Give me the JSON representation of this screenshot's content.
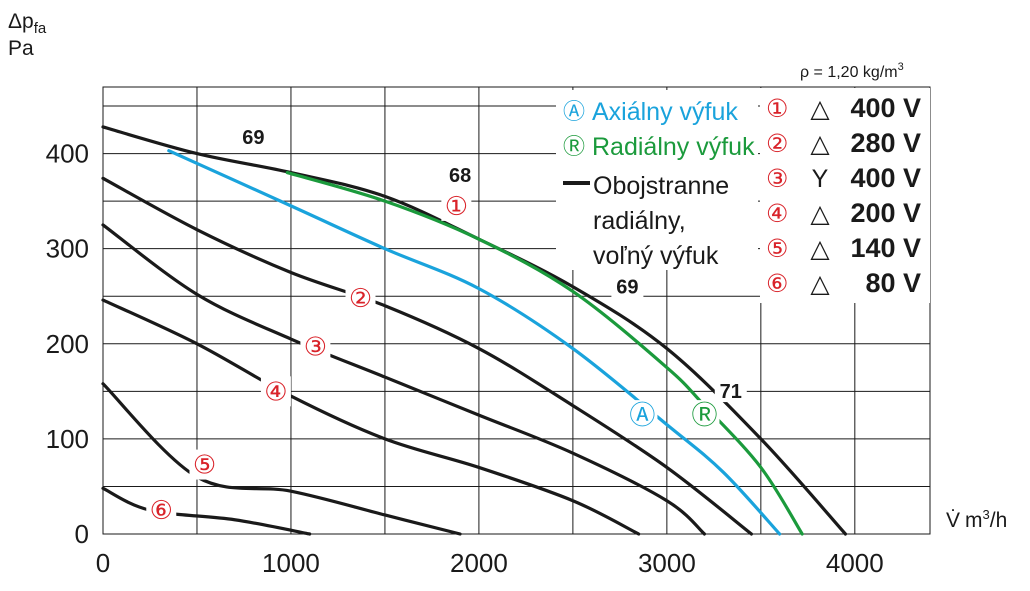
{
  "chart_data": {
    "type": "line",
    "ylabel_main": "Δp",
    "ylabel_sub": "fa",
    "yunit": "Pa",
    "xlabel_sym": "V̇",
    "xunit_main": "m",
    "xunit_sup": "3",
    "xunit_rest": "/h",
    "density_pre": "ρ = 1,20 kg/m",
    "density_sup": "3",
    "xlim": [
      0,
      4400
    ],
    "ylim": [
      0,
      470
    ],
    "xticks": [
      "0",
      "1000",
      "2000",
      "3000",
      "4000"
    ],
    "yticks": [
      "0",
      "100",
      "200",
      "300",
      "400"
    ],
    "grid": true,
    "colors": {
      "black": "#1a1a1a",
      "axial": "#1aa3dc",
      "radial": "#1b9a3c",
      "marker": "#d9232a"
    },
    "legend": [
      {
        "symbol": "Ⓐ",
        "label": "Axiálny výfuk",
        "color": "#1aa3dc"
      },
      {
        "symbol": "Ⓡ",
        "label": "Radiálny výfuk",
        "color": "#1b9a3c"
      },
      {
        "symbol": "line",
        "label": "Obojstranne",
        "label2": "radiálny,",
        "label3": "voľný výfuk",
        "color": "#1a1a1a"
      }
    ],
    "speed_legend": [
      {
        "symbol": "①",
        "conn": "△",
        "voltage": "400 V"
      },
      {
        "symbol": "②",
        "conn": "△",
        "voltage": "280 V"
      },
      {
        "symbol": "③",
        "conn": "Y",
        "voltage": "400 V"
      },
      {
        "symbol": "④",
        "conn": "△",
        "voltage": "200 V"
      },
      {
        "symbol": "⑤",
        "conn": "△",
        "voltage": "140 V"
      },
      {
        "symbol": "⑥",
        "conn": "△",
        "voltage": "80 V"
      }
    ],
    "series": [
      {
        "id": "1",
        "color": "#1a1a1a",
        "points": [
          [
            0,
            428
          ],
          [
            500,
            400
          ],
          [
            1000,
            380
          ],
          [
            1500,
            355
          ],
          [
            2000,
            310
          ],
          [
            2500,
            260
          ],
          [
            3000,
            195
          ],
          [
            3500,
            100
          ],
          [
            3950,
            0
          ]
        ]
      },
      {
        "id": "2",
        "color": "#1a1a1a",
        "points": [
          [
            0,
            374
          ],
          [
            500,
            320
          ],
          [
            1000,
            275
          ],
          [
            1500,
            240
          ],
          [
            2000,
            195
          ],
          [
            2500,
            135
          ],
          [
            3000,
            70
          ],
          [
            3450,
            0
          ]
        ]
      },
      {
        "id": "3",
        "color": "#1a1a1a",
        "points": [
          [
            0,
            325
          ],
          [
            500,
            252
          ],
          [
            1000,
            205
          ],
          [
            1500,
            165
          ],
          [
            2000,
            125
          ],
          [
            2500,
            85
          ],
          [
            3000,
            35
          ],
          [
            3200,
            0
          ]
        ]
      },
      {
        "id": "4",
        "color": "#1a1a1a",
        "points": [
          [
            0,
            246
          ],
          [
            500,
            200
          ],
          [
            1000,
            145
          ],
          [
            1500,
            100
          ],
          [
            2000,
            70
          ],
          [
            2500,
            35
          ],
          [
            2850,
            0
          ]
        ]
      },
      {
        "id": "5",
        "color": "#1a1a1a",
        "points": [
          [
            0,
            158
          ],
          [
            500,
            60
          ],
          [
            1000,
            45
          ],
          [
            1500,
            20
          ],
          [
            1900,
            0
          ]
        ]
      },
      {
        "id": "6",
        "color": "#1a1a1a",
        "points": [
          [
            0,
            48
          ],
          [
            250,
            25
          ],
          [
            700,
            15
          ],
          [
            1100,
            0
          ]
        ]
      },
      {
        "id": "axial",
        "color": "#1aa3dc",
        "points": [
          [
            350,
            403
          ],
          [
            1000,
            345
          ],
          [
            1500,
            300
          ],
          [
            2000,
            258
          ],
          [
            2500,
            195
          ],
          [
            3000,
            115
          ],
          [
            3300,
            65
          ],
          [
            3600,
            0
          ]
        ]
      },
      {
        "id": "radial",
        "color": "#1b9a3c",
        "points": [
          [
            980,
            380
          ],
          [
            1500,
            350
          ],
          [
            2000,
            310
          ],
          [
            2500,
            255
          ],
          [
            3000,
            175
          ],
          [
            3200,
            135
          ],
          [
            3500,
            70
          ],
          [
            3720,
            0
          ]
        ]
      }
    ],
    "curve_markers": [
      {
        "symbol": "①",
        "x": 1880,
        "y": 345,
        "color": "#d9232a"
      },
      {
        "symbol": "②",
        "x": 1370,
        "y": 248,
        "color": "#d9232a"
      },
      {
        "symbol": "③",
        "x": 1130,
        "y": 197,
        "color": "#d9232a"
      },
      {
        "symbol": "④",
        "x": 920,
        "y": 150,
        "color": "#d9232a"
      },
      {
        "symbol": "⑤",
        "x": 540,
        "y": 73,
        "color": "#d9232a"
      },
      {
        "symbol": "⑥",
        "x": 310,
        "y": 25,
        "color": "#d9232a"
      },
      {
        "symbol": "Ⓐ",
        "x": 2870,
        "y": 125,
        "color": "#1aa3dc"
      },
      {
        "symbol": "Ⓡ",
        "x": 3200,
        "y": 125,
        "color": "#1b9a3c"
      }
    ],
    "annotations": [
      {
        "text": "69",
        "x": 800,
        "y": 412
      },
      {
        "text": "68",
        "x": 1900,
        "y": 372
      },
      {
        "text": "69",
        "x": 2790,
        "y": 255
      },
      {
        "text": "71",
        "x": 3340,
        "y": 145
      }
    ]
  }
}
